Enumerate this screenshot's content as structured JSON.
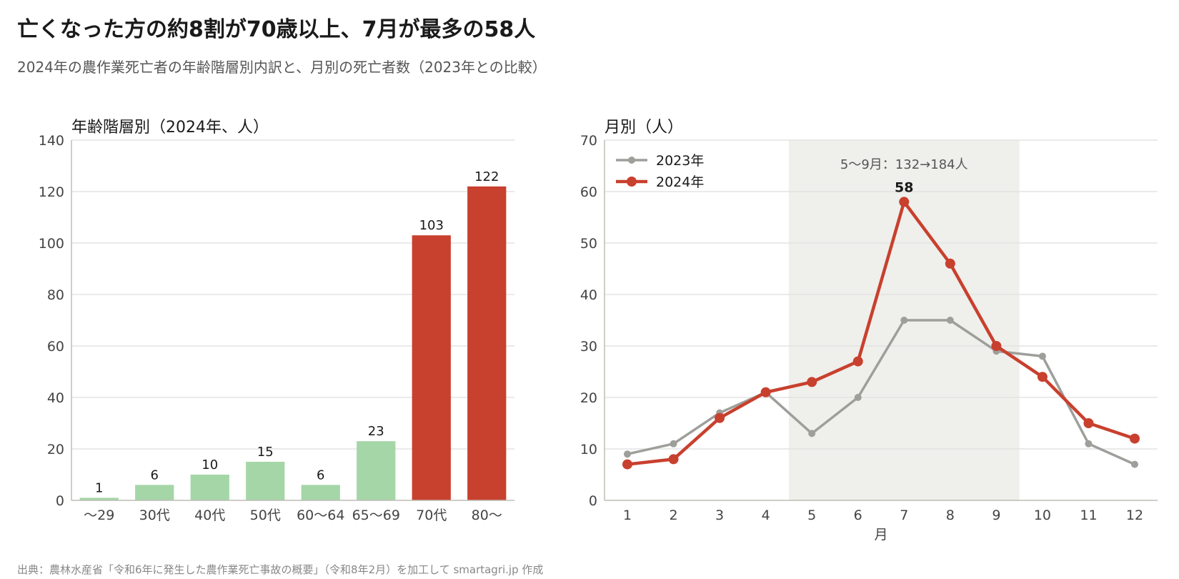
{
  "title": "亡くなった方の約8割が70歳以上、7月が最多の58人",
  "subtitle": "2024年の農作業死亡者の年齢階層別内訳と、月別の死亡者数（2023年との比較）",
  "footer": "出典：農林水産省「令和6年に発生した農作業死亡事故の概要」（令和8年2月）を加工して smartagri.jp 作成",
  "colors": {
    "bar_green": "#a5d6a7",
    "bar_red": "#c8402e",
    "line_2023": "#9e9e9a",
    "line_2024": "#c8402e",
    "shade": "#efefeb",
    "grid": "#e3e3e3",
    "axis": "#bdbdb5"
  },
  "chart_data": [
    {
      "type": "bar",
      "title": "年齢階層別（2024年、人）",
      "categories": [
        "〜29",
        "30代",
        "40代",
        "50代",
        "60〜64",
        "65〜69",
        "70代",
        "80〜"
      ],
      "values": [
        1,
        6,
        10,
        15,
        6,
        23,
        103,
        122
      ],
      "highlight": [
        false,
        false,
        false,
        false,
        false,
        false,
        true,
        true
      ],
      "ylim": [
        0,
        140
      ],
      "yticks": [
        0,
        20,
        40,
        60,
        80,
        100,
        120,
        140
      ],
      "xlabel": "",
      "ylabel": "",
      "grid": true
    },
    {
      "type": "line",
      "title": "月別（人）",
      "x": [
        1,
        2,
        3,
        4,
        5,
        6,
        7,
        8,
        9,
        10,
        11,
        12
      ],
      "series": [
        {
          "name": "2023年",
          "values": [
            9,
            11,
            17,
            21,
            13,
            20,
            35,
            35,
            29,
            28,
            11,
            7
          ]
        },
        {
          "name": "2024年",
          "values": [
            7,
            8,
            16,
            21,
            23,
            27,
            58,
            46,
            30,
            24,
            15,
            12
          ]
        }
      ],
      "ylim": [
        0,
        70
      ],
      "yticks": [
        0,
        10,
        20,
        30,
        40,
        50,
        60,
        70
      ],
      "xlabel": "月",
      "ylabel": "",
      "legend": "top-left",
      "grid": true,
      "shaded_range": {
        "from": 5,
        "to": 9,
        "label": "5〜9月：132→184人"
      },
      "annotations": [
        {
          "x": 7,
          "series": "2024年",
          "text": "58"
        }
      ]
    }
  ]
}
